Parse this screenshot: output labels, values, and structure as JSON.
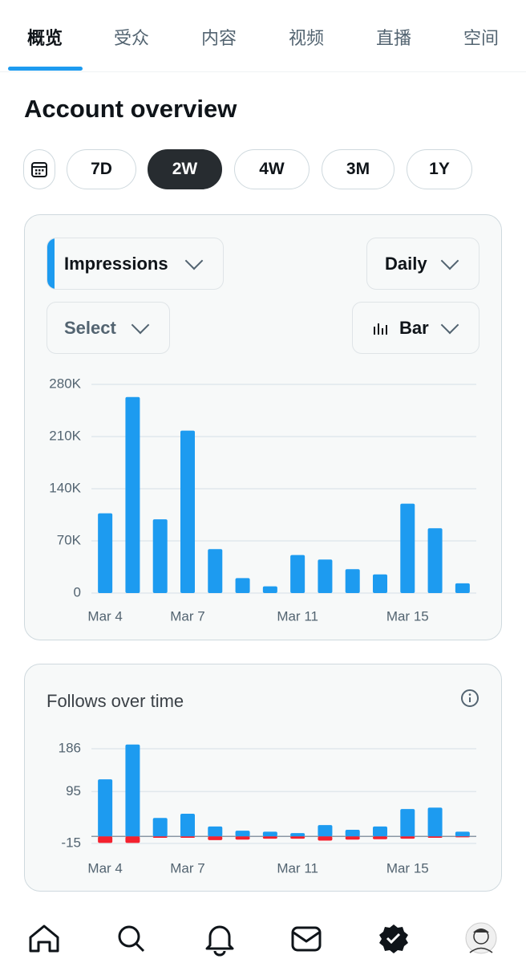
{
  "tabs": [
    "概览",
    "受众",
    "内容",
    "视频",
    "直播",
    "空间"
  ],
  "active_tab": 0,
  "title": "Account overview",
  "ranges": [
    "7D",
    "2W",
    "4W",
    "3M",
    "1Y"
  ],
  "active_range": 1,
  "controls": {
    "metric": "Impressions",
    "interval": "Daily",
    "select": "Select",
    "chart_type": "Bar"
  },
  "chart_data": [
    {
      "type": "bar",
      "categories": [
        "Mar 4",
        null,
        null,
        "Mar 7",
        null,
        null,
        null,
        "Mar 11",
        null,
        null,
        null,
        "Mar 15",
        null,
        null
      ],
      "values": [
        107000,
        263000,
        99000,
        218000,
        59000,
        20000,
        9000,
        51000,
        45000,
        32000,
        25000,
        120000,
        87000,
        13000
      ],
      "color": "#1d9bf0",
      "ylim": [
        0,
        280000
      ],
      "yticks": [
        0,
        {
          "value": 70000,
          "label": "70K"
        },
        {
          "value": 140000,
          "label": "140K"
        },
        {
          "value": 210000,
          "label": "210K"
        },
        {
          "value": 280000,
          "label": "280K"
        }
      ],
      "grid": true
    },
    {
      "type": "bar",
      "title": "Follows over time",
      "categories": [
        "Mar 4",
        null,
        null,
        "Mar 7",
        null,
        null,
        null,
        "Mar 11",
        null,
        null,
        null,
        "Mar 15",
        null,
        null
      ],
      "series": [
        {
          "color": "#1d9bf0",
          "values": [
            121,
            195,
            39,
            48,
            21,
            12,
            10,
            7,
            24,
            14,
            21,
            58,
            61,
            10
          ]
        },
        {
          "color": "#f4212e",
          "values": [
            -14,
            -14,
            -3,
            -3,
            -8,
            -7,
            -5,
            -5,
            -9,
            -7,
            -6,
            -5,
            -3,
            -2
          ]
        }
      ],
      "ylim": [
        -15,
        186
      ],
      "yticks": [
        -15,
        95,
        186
      ],
      "grid": true
    }
  ]
}
